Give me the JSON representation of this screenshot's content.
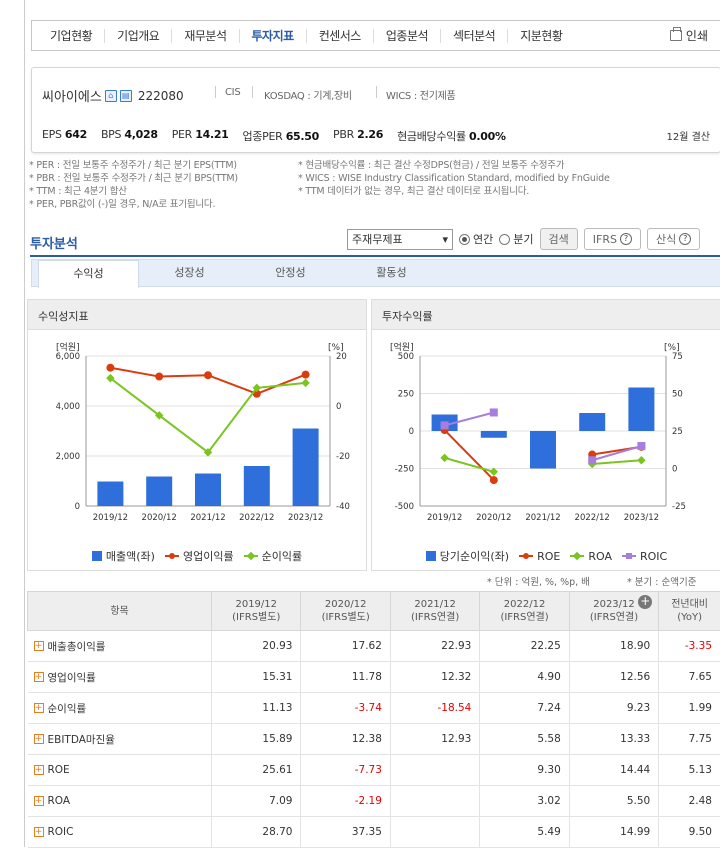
{
  "nav": {
    "tabs": [
      "기업현황",
      "기업개요",
      "재무분석",
      "투자지표",
      "컨센서스",
      "업종분석",
      "섹터분석",
      "지분현황"
    ],
    "active": "투자지표",
    "print": "인쇄"
  },
  "company": {
    "name": "씨아이에스",
    "code": "222080",
    "ticker": "CIS",
    "market": "KOSDAQ : 기계,장비",
    "wics": "WICS : 전기제품",
    "metrics": [
      {
        "label": "EPS",
        "value": "642"
      },
      {
        "label": "BPS",
        "value": "4,028"
      },
      {
        "label": "PER",
        "value": "14.21"
      },
      {
        "label": "업종PER",
        "value": "65.50"
      },
      {
        "label": "PBR",
        "value": "2.26"
      },
      {
        "label": "현금배당수익률",
        "value": "0.00%"
      }
    ],
    "settle": "12월 결산"
  },
  "notes": {
    "left": [
      "* PER : 전일 보통주 수정주가 / 최근 분기 EPS(TTM)",
      "* PBR : 전일 보통주 수정주가 / 최근 분기 BPS(TTM)",
      "* TTM : 최근 4분기 합산",
      "* PER, PBR값이 (-)일 경우, N/A로 표기됩니다."
    ],
    "right": [
      "* 현금배당수익률 : 최근 결산 수정DPS(현금) / 전일 보통주 수정주가",
      "* WICS : WISE Industry Classification Standard, modified by FnGuide",
      "* TTM 데이터가 없는 경우, 최근 결산 데이터로 표시됩니다."
    ]
  },
  "invest": {
    "title": "투자분석",
    "select": "주재무제표",
    "radio_year": "연간",
    "radio_quarter": "분기",
    "search": "검색",
    "ifrs": "IFRS",
    "calc": "산식",
    "subtabs": [
      "수익성",
      "성장성",
      "안정성",
      "활동성"
    ]
  },
  "panels": {
    "left_title": "수익성지표",
    "right_title": "투자수익률"
  },
  "colors": {
    "bar": "#2f6fdb",
    "red": "#d93c0e",
    "green": "#7ac520",
    "purple": "#a67ee0",
    "nav_active": "#2c5ba8"
  },
  "chart_data": [
    {
      "type": "bar",
      "categories": [
        "2019/12",
        "2020/12",
        "2021/12",
        "2022/12",
        "2023/12"
      ],
      "y_unit_left": "[억원]",
      "y_unit_right": "[%]",
      "ylim": [
        0,
        6000
      ],
      "y2lim": [
        -40,
        20
      ],
      "y_ticks": [
        "0",
        "2,000",
        "4,000",
        "6,000"
      ],
      "y2_ticks": [
        "-40",
        "-20",
        "0",
        "20"
      ],
      "series": [
        {
          "name": "매출액(좌)",
          "type": "bar",
          "axis": "left",
          "values": [
            980,
            1180,
            1300,
            1600,
            3100
          ]
        },
        {
          "name": "영업이익률",
          "type": "line",
          "axis": "right",
          "values": [
            15.31,
            11.78,
            12.32,
            4.9,
            12.56
          ]
        },
        {
          "name": "순이익률",
          "type": "line",
          "axis": "right",
          "values": [
            11.13,
            -3.74,
            -18.54,
            7.24,
            9.23
          ]
        }
      ]
    },
    {
      "type": "bar",
      "categories": [
        "2019/12",
        "2020/12",
        "2021/12",
        "2022/12",
        "2023/12"
      ],
      "y_unit_left": "[억원]",
      "y_unit_right": "[%]",
      "ylim": [
        -500,
        500
      ],
      "y2lim": [
        -25,
        75
      ],
      "y_ticks": [
        "-500",
        "-250",
        "0",
        "250",
        "500"
      ],
      "y2_ticks": [
        "-25",
        "0",
        "25",
        "50",
        "75"
      ],
      "series": [
        {
          "name": "당기순이익(좌)",
          "type": "bar",
          "axis": "left",
          "values": [
            110,
            -45,
            -250,
            120,
            290
          ]
        },
        {
          "name": "ROE",
          "type": "line",
          "axis": "right",
          "values": [
            25.61,
            -7.73,
            null,
            9.3,
            14.44
          ]
        },
        {
          "name": "ROA",
          "type": "line",
          "axis": "right",
          "values": [
            7.09,
            -2.19,
            null,
            3.02,
            5.5
          ]
        },
        {
          "name": "ROIC",
          "type": "line",
          "axis": "right",
          "values": [
            28.7,
            37.35,
            null,
            5.49,
            14.99
          ]
        }
      ]
    }
  ],
  "unit_note": "* 단위 : 억원, %, %p, 배",
  "quarter_note": "* 분기 : 순액기준",
  "table": {
    "header": [
      "항목",
      "2019/12\n(IFRS별도)",
      "2020/12\n(IFRS별도)",
      "2021/12\n(IFRS연결)",
      "2022/12\n(IFRS연결)",
      "2023/12\n(IFRS연결)",
      "전년대비\n(YoY)"
    ],
    "rows": [
      {
        "name": "매출총이익률",
        "values": [
          "20.93",
          "17.62",
          "22.93",
          "22.25",
          "18.90",
          "-3.35"
        ]
      },
      {
        "name": "영업이익률",
        "values": [
          "15.31",
          "11.78",
          "12.32",
          "4.90",
          "12.56",
          "7.65"
        ]
      },
      {
        "name": "순이익률",
        "values": [
          "11.13",
          "-3.74",
          "-18.54",
          "7.24",
          "9.23",
          "1.99"
        ]
      },
      {
        "name": "EBITDA마진율",
        "values": [
          "15.89",
          "12.38",
          "12.93",
          "5.58",
          "13.33",
          "7.75"
        ]
      },
      {
        "name": "ROE",
        "values": [
          "25.61",
          "-7.73",
          "",
          "9.30",
          "14.44",
          "5.13"
        ]
      },
      {
        "name": "ROA",
        "values": [
          "7.09",
          "-2.19",
          "",
          "3.02",
          "5.50",
          "2.48"
        ]
      },
      {
        "name": "ROIC",
        "values": [
          "28.70",
          "37.35",
          "",
          "5.49",
          "14.99",
          "9.50"
        ]
      }
    ]
  }
}
